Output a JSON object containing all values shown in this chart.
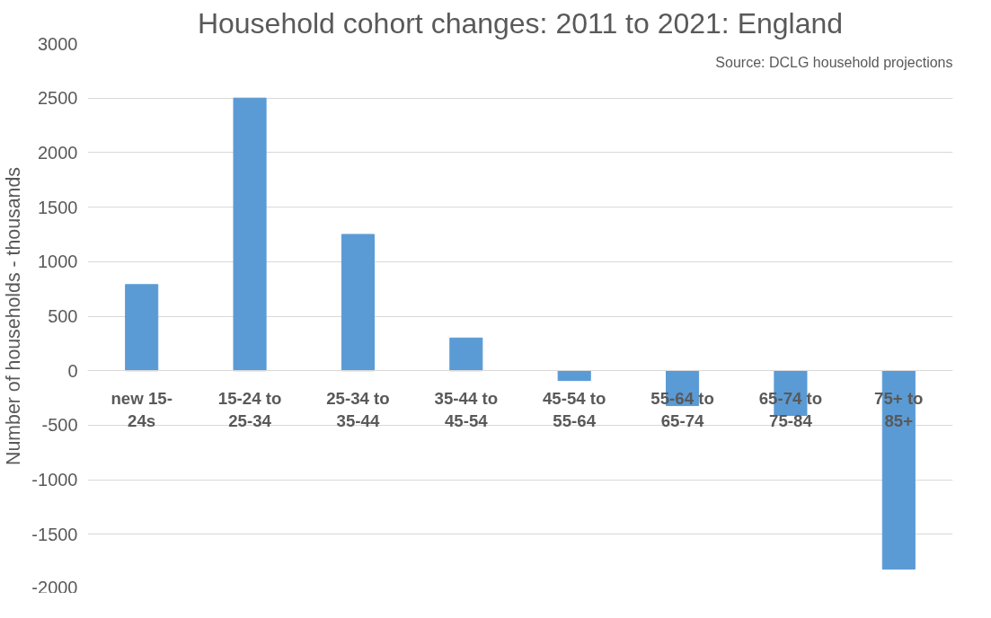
{
  "chart_data": {
    "type": "bar",
    "title": "Household cohort changes: 2011 to 2021: England",
    "ylabel": "Number of households - thousands",
    "categories": [
      "new 15-\n24s",
      "15-24 to\n25-34",
      "25-34 to\n35-44",
      "35-44 to\n45-54",
      "45-54 to\n55-64",
      "55-64 to\n65-74",
      "65-74 to\n75-84",
      "75+ to\n85+"
    ],
    "values": [
      790,
      2500,
      1250,
      300,
      -90,
      -320,
      -410,
      -1820
    ],
    "color": "#5b9bd5",
    "ylim": [
      -2000,
      3000
    ],
    "yticks": [
      -2000,
      -1500,
      -1000,
      -500,
      0,
      500,
      1000,
      1500,
      2000,
      2500,
      3000
    ],
    "grid": "y",
    "annotations": [
      "Source: DCLG household projections"
    ]
  }
}
